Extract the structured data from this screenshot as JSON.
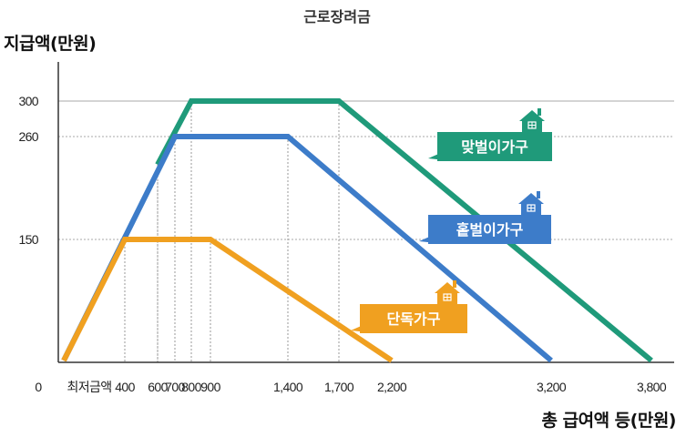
{
  "chart_data": {
    "type": "line",
    "title": "근로장려금",
    "ylabel": "지급액(만원)",
    "xlabel": "총 급여액 등(만원)",
    "origin_label": "0",
    "x_ticks": [
      {
        "value": 0,
        "label": "최저금액"
      },
      {
        "value": 400,
        "label": "400"
      },
      {
        "value": 600,
        "label": "600"
      },
      {
        "value": 700,
        "label": "700"
      },
      {
        "value": 800,
        "label": "800"
      },
      {
        "value": 900,
        "label": "900"
      },
      {
        "value": 1400,
        "label": "1,400"
      },
      {
        "value": 1700,
        "label": "1,700"
      },
      {
        "value": 2200,
        "label": "2,200"
      },
      {
        "value": 3200,
        "label": "3,200"
      },
      {
        "value": 3800,
        "label": "3,800"
      }
    ],
    "y_ticks": [
      150,
      260,
      300
    ],
    "ylim": [
      0,
      300
    ],
    "grid": "dashed reference lines at breakpoints",
    "series": [
      {
        "name": "맞벌이가구",
        "color": "#1f9a7a",
        "points": [
          [
            600,
            230
          ],
          [
            800,
            300
          ],
          [
            1700,
            300
          ],
          [
            3800,
            0
          ]
        ]
      },
      {
        "name": "홑벌이가구",
        "color": "#3d7cc9",
        "points": [
          [
            0,
            0
          ],
          [
            700,
            260
          ],
          [
            1400,
            260
          ],
          [
            3200,
            0
          ]
        ]
      },
      {
        "name": "단독가구",
        "color": "#f0a020",
        "points": [
          [
            0,
            0
          ],
          [
            400,
            150
          ],
          [
            900,
            150
          ],
          [
            2200,
            0
          ]
        ]
      }
    ],
    "series_labels": [
      {
        "series": 0,
        "icon": "house-icon"
      },
      {
        "series": 1,
        "icon": "house-icon"
      },
      {
        "series": 2,
        "icon": "house-icon"
      }
    ]
  }
}
